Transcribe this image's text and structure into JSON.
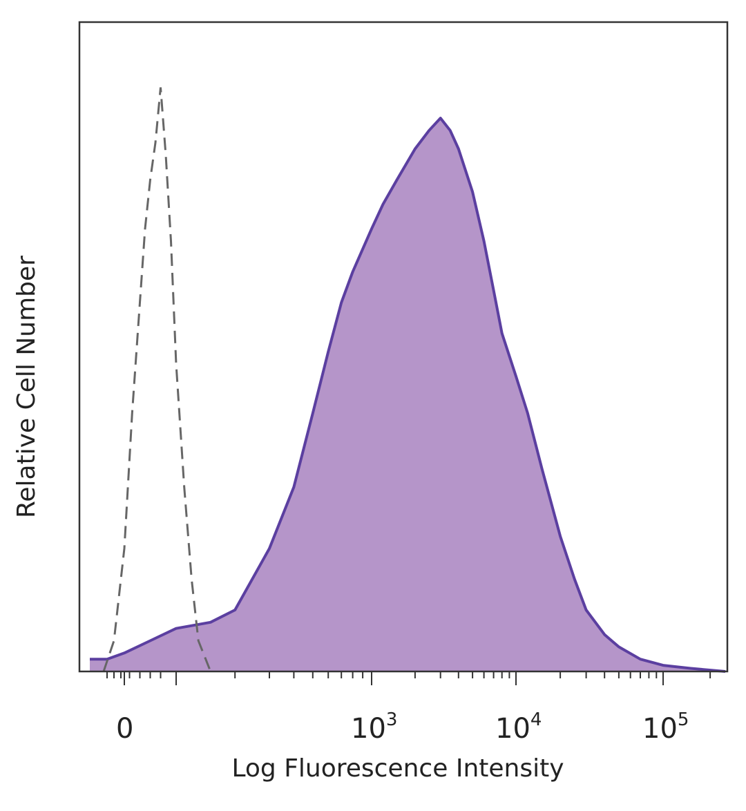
{
  "chart_data": {
    "type": "area",
    "title": "",
    "xlabel": "Log Fluorescence Intensity",
    "ylabel": "Relative Cell Number",
    "x_scale": "biexponential (linear near 0, log above ~10^2)",
    "xlim": [
      -100,
      250000
    ],
    "ylim": [
      0,
      1.0
    ],
    "grid": false,
    "legend": "none",
    "x_ticks": [
      {
        "value": 0,
        "base": "0",
        "exp": ""
      },
      {
        "value": 1000,
        "base": "10",
        "exp": "3"
      },
      {
        "value": 10000,
        "base": "10",
        "exp": "4"
      },
      {
        "value": 100000,
        "base": "10",
        "exp": "5"
      }
    ],
    "series": [
      {
        "style": "dashed outline (isotype control)",
        "color": "#666666",
        "x": [
          -60,
          -30,
          0,
          15,
          30,
          40,
          50,
          60,
          70,
          80,
          90,
          100,
          110,
          120,
          130,
          150
        ],
        "y": [
          0.0,
          0.05,
          0.2,
          0.42,
          0.6,
          0.72,
          0.8,
          0.86,
          0.95,
          0.84,
          0.7,
          0.5,
          0.3,
          0.15,
          0.05,
          0.0
        ]
      },
      {
        "style": "filled histogram (stained)",
        "color": "#5b3fa0",
        "fill": "#b595c9",
        "x": [
          -100,
          -50,
          0,
          50,
          100,
          150,
          200,
          300,
          400,
          500,
          600,
          700,
          800,
          1000,
          1200,
          1500,
          2000,
          2500,
          3000,
          3500,
          4000,
          5000,
          6000,
          7000,
          8000,
          10000,
          12000,
          15000,
          20000,
          25000,
          30000,
          40000,
          50000,
          70000,
          100000,
          150000,
          250000
        ],
        "y": [
          0.02,
          0.02,
          0.03,
          0.05,
          0.07,
          0.08,
          0.1,
          0.2,
          0.3,
          0.42,
          0.52,
          0.6,
          0.65,
          0.72,
          0.76,
          0.8,
          0.85,
          0.88,
          0.9,
          0.88,
          0.85,
          0.78,
          0.7,
          0.62,
          0.55,
          0.48,
          0.42,
          0.33,
          0.22,
          0.15,
          0.1,
          0.06,
          0.04,
          0.02,
          0.01,
          0.005,
          0.0
        ]
      }
    ]
  }
}
